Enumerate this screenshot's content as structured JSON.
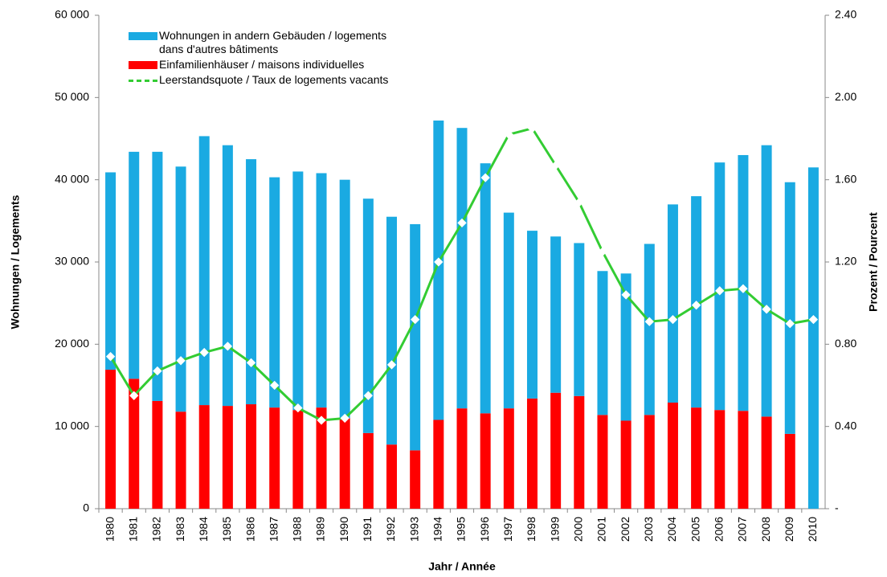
{
  "chart_data": {
    "type": "bar",
    "stacked": true,
    "x_label": "Jahr / Année",
    "y_label": "Wohnungen / Logements",
    "y2_label": "Prozent / Pourcent",
    "categories": [
      "1980",
      "1981",
      "1982",
      "1983",
      "1984",
      "1985",
      "1986",
      "1987",
      "1988",
      "1989",
      "1990",
      "1991",
      "1992",
      "1993",
      "1994",
      "1995",
      "1996",
      "1997",
      "1998",
      "1999",
      "2000",
      "2001",
      "2002",
      "2003",
      "2004",
      "2005",
      "2006",
      "2007",
      "2008",
      "2009",
      "2010"
    ],
    "series": [
      {
        "name": "Wohnungen in andern Gebäuden / logements dans d'autres bâtiments",
        "color": "#1aaae2",
        "values": [
          24000,
          27600,
          30300,
          29800,
          32700,
          31700,
          29800,
          28000,
          29000,
          28500,
          29000,
          28500,
          27700,
          27500,
          36400,
          34100,
          30400,
          23800,
          20400,
          19000,
          18600,
          17500,
          17900,
          20800,
          24100,
          25700,
          30100,
          31100,
          33000,
          30600,
          41500
        ]
      },
      {
        "name": "Einfamilienhäuser / maisons individuelles",
        "color": "#ff0000",
        "values": [
          16900,
          15800,
          13100,
          11800,
          12600,
          12500,
          12700,
          12300,
          12000,
          12300,
          11000,
          9200,
          7800,
          7100,
          10800,
          12200,
          11600,
          12200,
          13400,
          14100,
          13700,
          11400,
          10700,
          11400,
          12900,
          12300,
          12000,
          11900,
          11200,
          9100,
          null
        ]
      },
      {
        "name": "Leerstandsquote / Taux de logements vacants",
        "type": "line",
        "axis": "y2",
        "color": "#33cc33",
        "values": [
          0.74,
          0.55,
          0.67,
          0.72,
          0.76,
          0.79,
          0.71,
          0.6,
          0.49,
          0.43,
          0.44,
          0.55,
          0.7,
          0.92,
          1.2,
          1.39,
          1.61,
          1.82,
          1.85,
          1.67,
          1.49,
          1.25,
          1.04,
          0.91,
          0.92,
          0.99,
          1.06,
          1.07,
          0.97,
          0.9,
          0.92
        ]
      }
    ],
    "ylim": [
      0,
      60000
    ],
    "yticks": [
      0,
      {
        "value": 10000,
        "label": "10 000"
      },
      {
        "value": 20000,
        "label": "20 000"
      },
      {
        "value": 30000,
        "label": "30 000"
      },
      {
        "value": 40000,
        "label": "40 000"
      },
      {
        "value": 50000,
        "label": "50 000"
      },
      {
        "value": 60000,
        "label": "60 000"
      }
    ],
    "y2lim": [
      0,
      2.4
    ],
    "y2ticks": [
      {
        "value": 0,
        "label": "-"
      },
      {
        "value": 0.4,
        "label": "0.40"
      },
      {
        "value": 0.8,
        "label": "0.80"
      },
      {
        "value": 1.2,
        "label": "1.20"
      },
      {
        "value": 1.6,
        "label": "1.60"
      },
      {
        "value": 2.0,
        "label": "2.00"
      },
      {
        "value": 2.4,
        "label": "2.40"
      }
    ]
  }
}
